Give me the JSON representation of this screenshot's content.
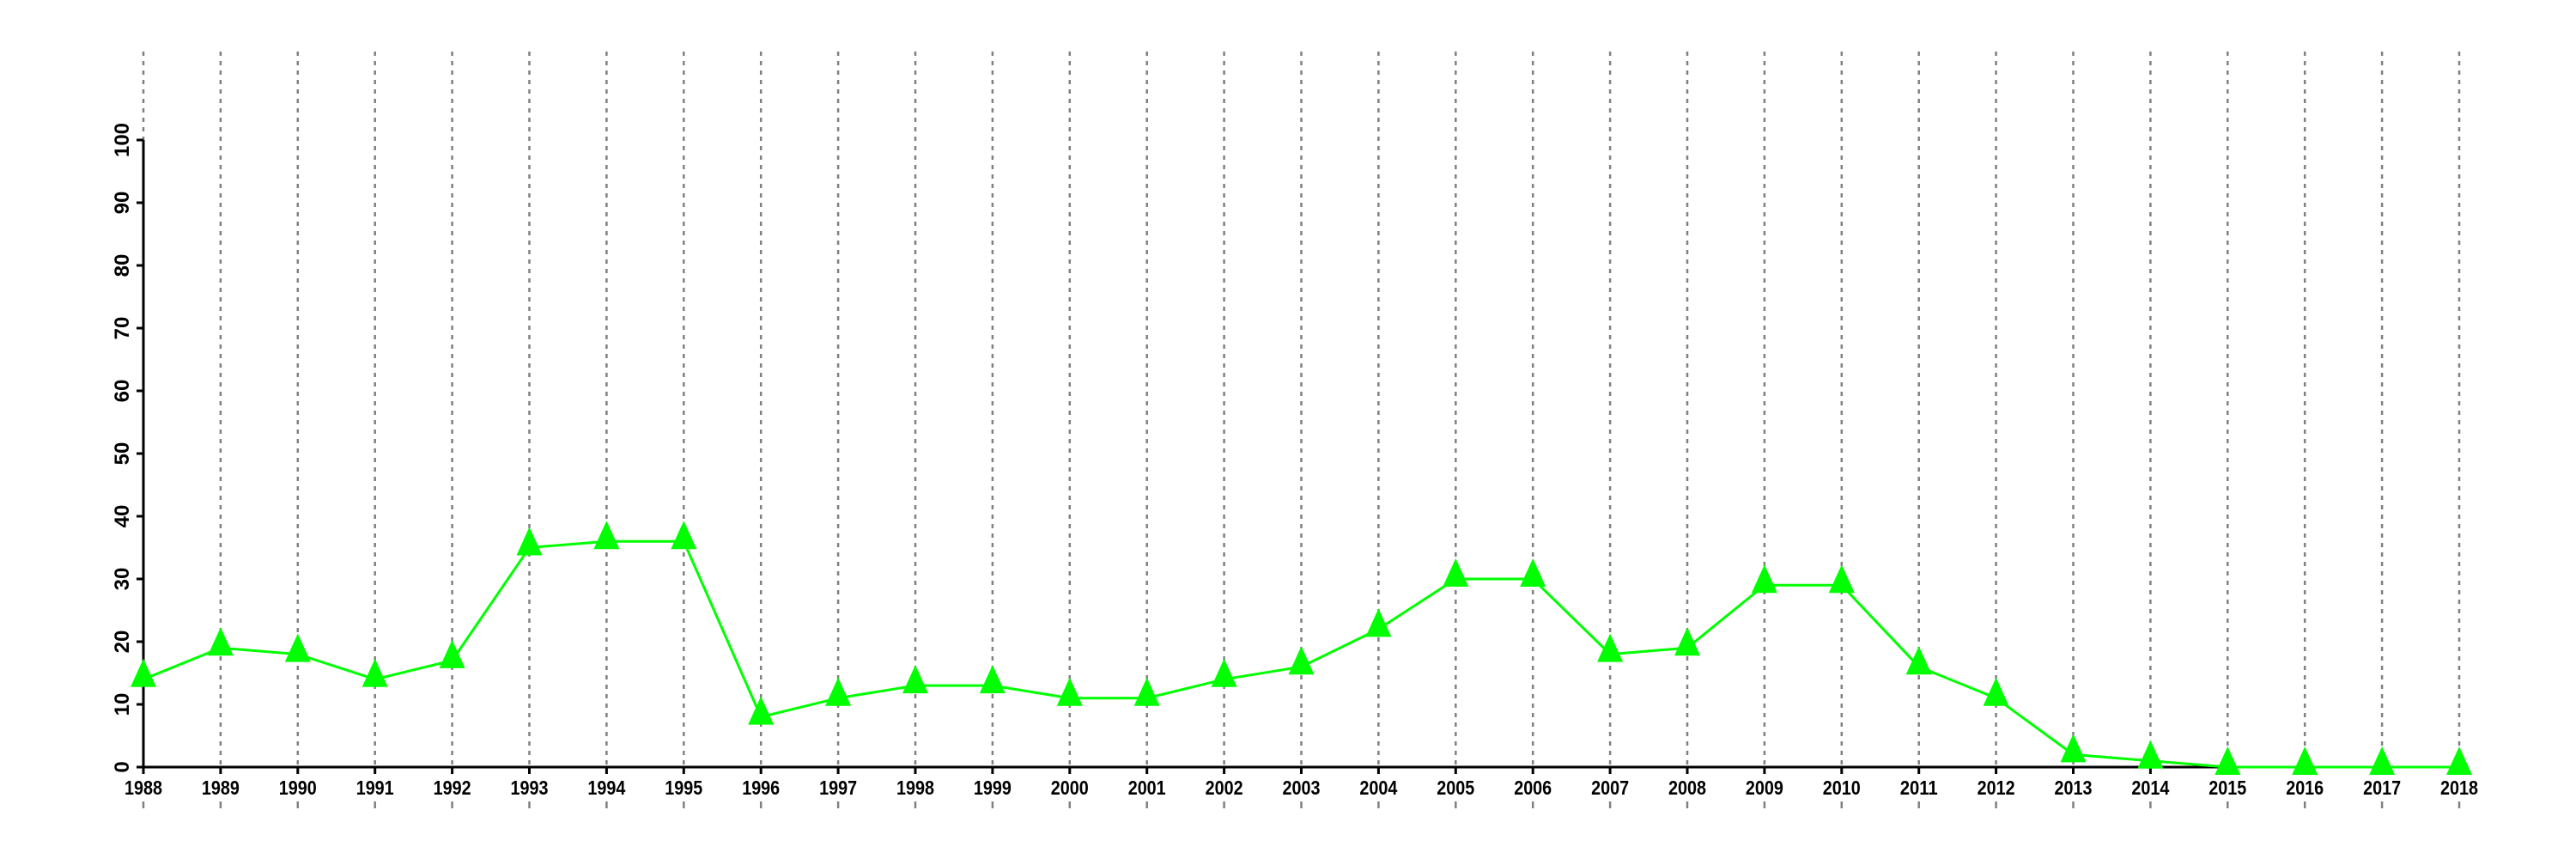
{
  "chart_data": {
    "type": "line",
    "title": "",
    "xlabel": "",
    "ylabel": "",
    "x": [
      1988,
      1989,
      1990,
      1991,
      1992,
      1993,
      1994,
      1995,
      1996,
      1997,
      1998,
      1999,
      2000,
      2001,
      2002,
      2003,
      2004,
      2005,
      2006,
      2007,
      2008,
      2009,
      2010,
      2011,
      2012,
      2013,
      2014,
      2015,
      2016,
      2017,
      2018
    ],
    "series": [
      {
        "values": [
          14,
          19,
          18,
          14,
          17,
          35,
          36,
          36,
          8,
          11,
          13,
          13,
          11,
          11,
          14,
          16,
          22,
          30,
          30,
          18,
          19,
          29,
          29,
          16,
          11,
          2,
          1,
          0,
          0,
          0,
          0
        ],
        "color": "#00ff00",
        "marker": "filled-triangle"
      }
    ],
    "xlim": [
      1988,
      2018
    ],
    "ylim": [
      0,
      100
    ],
    "yticks": [
      0,
      10,
      20,
      30,
      40,
      50,
      60,
      70,
      80,
      90,
      100
    ],
    "grid": "vertical dotted lines at each year",
    "grid_color": "#808080",
    "legend": "none"
  }
}
